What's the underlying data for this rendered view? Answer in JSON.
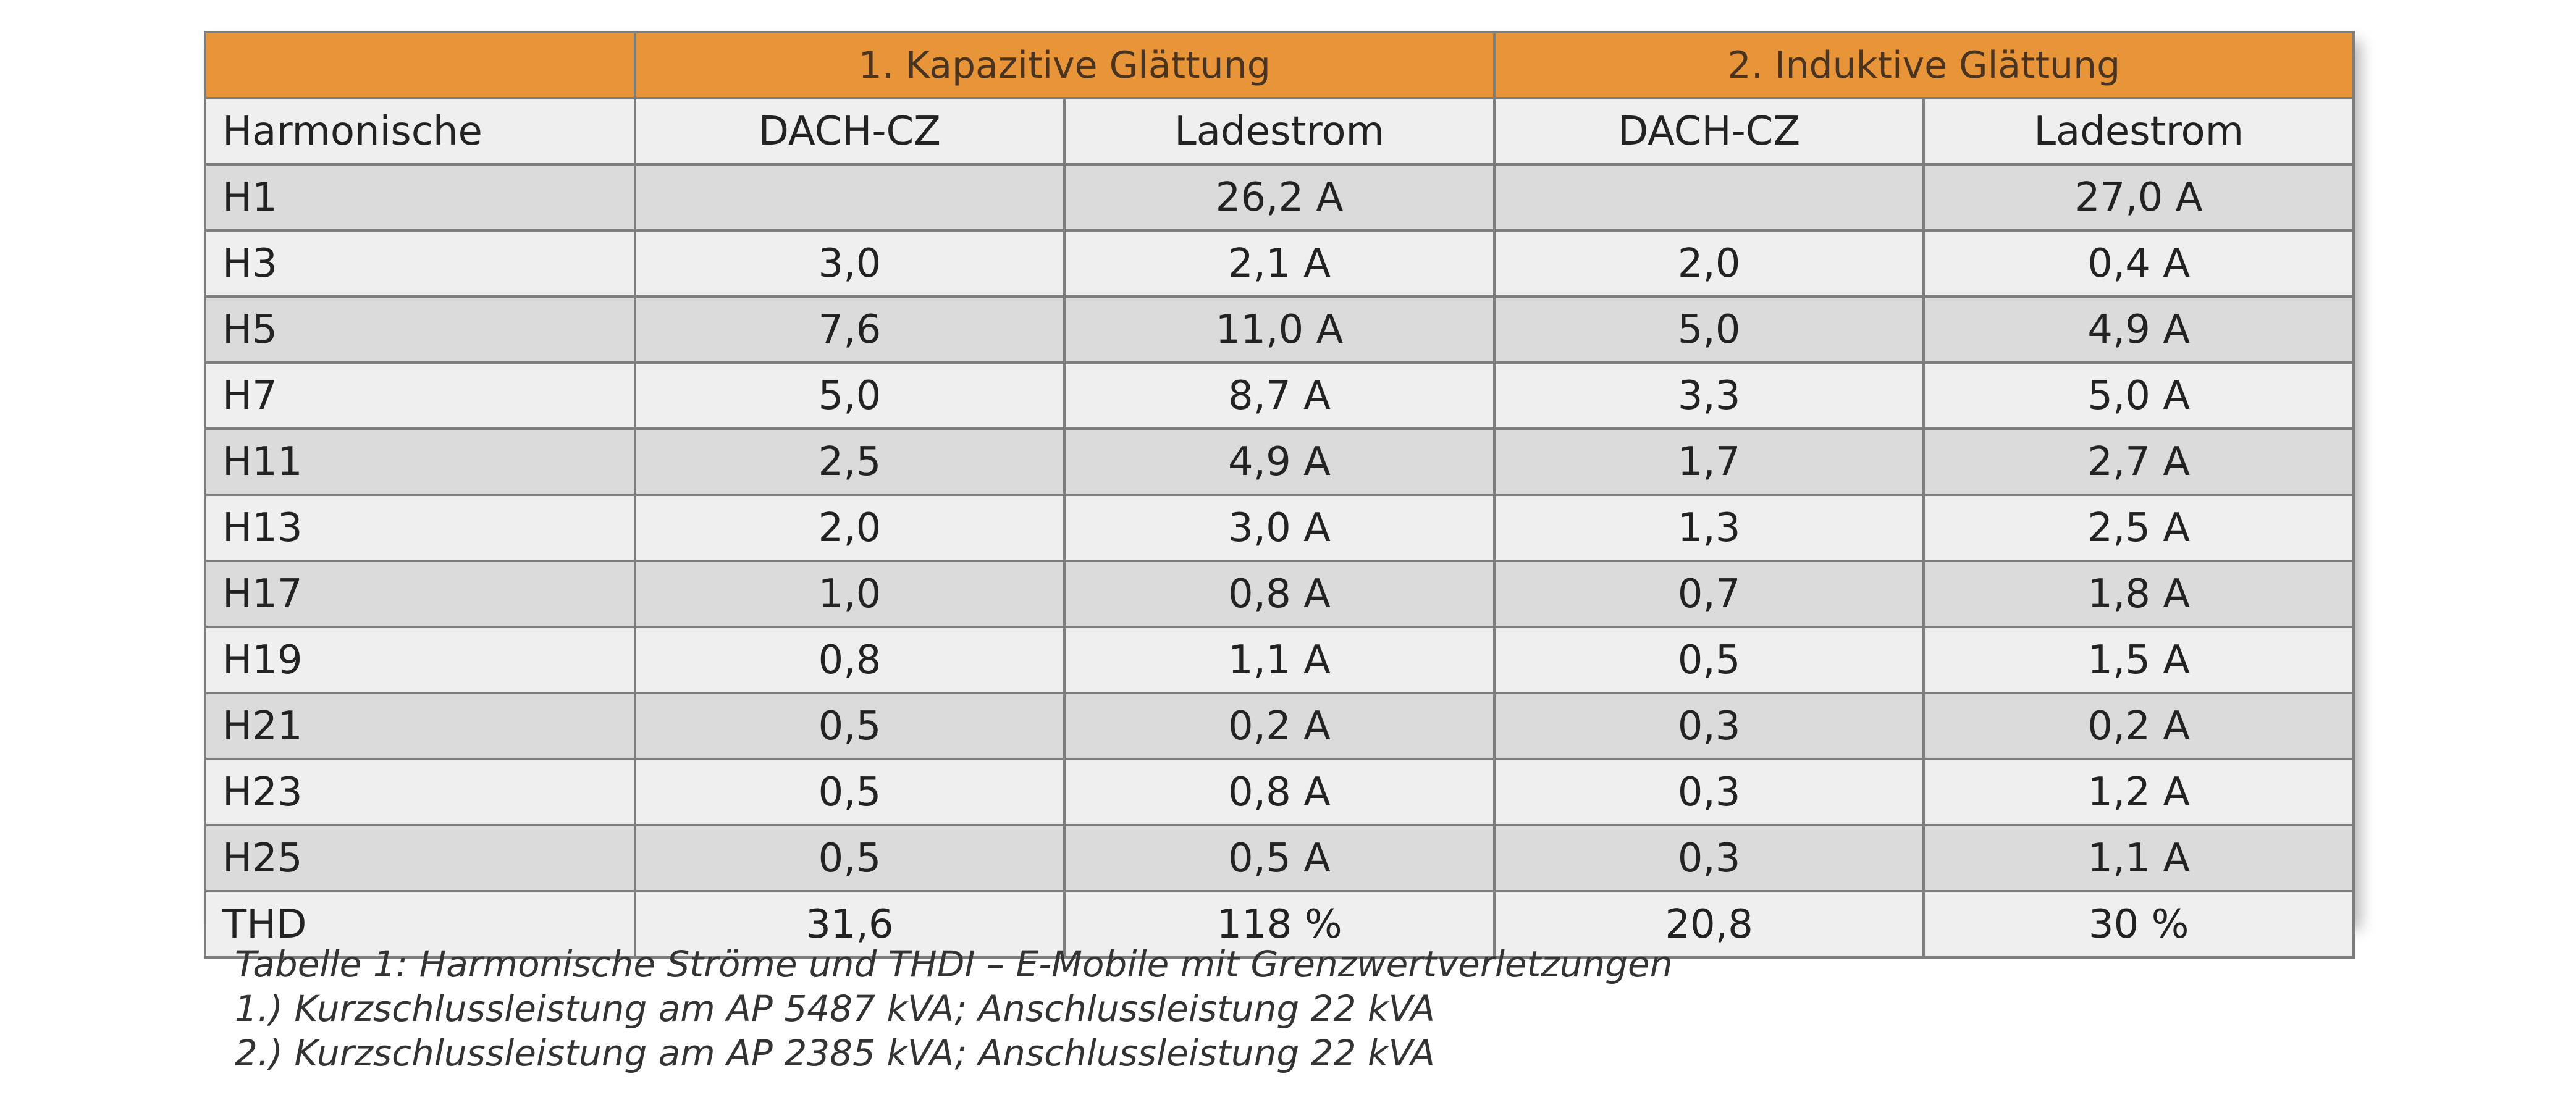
{
  "table": {
    "group_headers": [
      "",
      "1. Kapazitive Glättung",
      "2. Induktive Glättung"
    ],
    "column_headers": [
      "Harmonische",
      "DACH-CZ",
      "Ladestrom",
      "DACH-CZ",
      "Ladestrom"
    ],
    "rows": [
      [
        "H1",
        "",
        "26,2 A",
        "",
        "27,0 A"
      ],
      [
        "H3",
        "3,0",
        "2,1 A",
        "2,0",
        "0,4 A"
      ],
      [
        "H5",
        "7,6",
        "11,0 A",
        "5,0",
        "4,9 A"
      ],
      [
        "H7",
        "5,0",
        "8,7 A",
        "3,3",
        "5,0 A"
      ],
      [
        "H11",
        "2,5",
        "4,9 A",
        "1,7",
        "2,7 A"
      ],
      [
        "H13",
        "2,0",
        "3,0 A",
        "1,3",
        "2,5 A"
      ],
      [
        "H17",
        "1,0",
        "0,8 A",
        "0,7",
        "1,8 A"
      ],
      [
        "H19",
        "0,8",
        "1,1 A",
        "0,5",
        "1,5 A"
      ],
      [
        "H21",
        "0,5",
        "0,2 A",
        "0,3",
        "0,2 A"
      ],
      [
        "H23",
        "0,5",
        "0,8 A",
        "0,3",
        "1,2 A"
      ],
      [
        "H25",
        "0,5",
        "0,5 A",
        "0,3",
        "1,1 A"
      ],
      [
        "THD",
        "31,6",
        "118 %",
        "20,8",
        "30 %"
      ]
    ]
  },
  "caption": {
    "line1": "Tabelle 1: Harmonische Ströme und THDI – E-Mobile mit Grenzwertverletzungen",
    "line2": "1.) Kurzschlussleistung am AP 5487 kVA; Anschlussleistung 22 kVA",
    "line3": "2.) Kurzschlussleistung am AP 2385 kVA; Anschlussleistung 22 kVA"
  },
  "colors": {
    "header_orange": "#e8953a",
    "row_light": "#efefef",
    "row_dark": "#dbdbdb",
    "border": "#7d7d7d"
  }
}
